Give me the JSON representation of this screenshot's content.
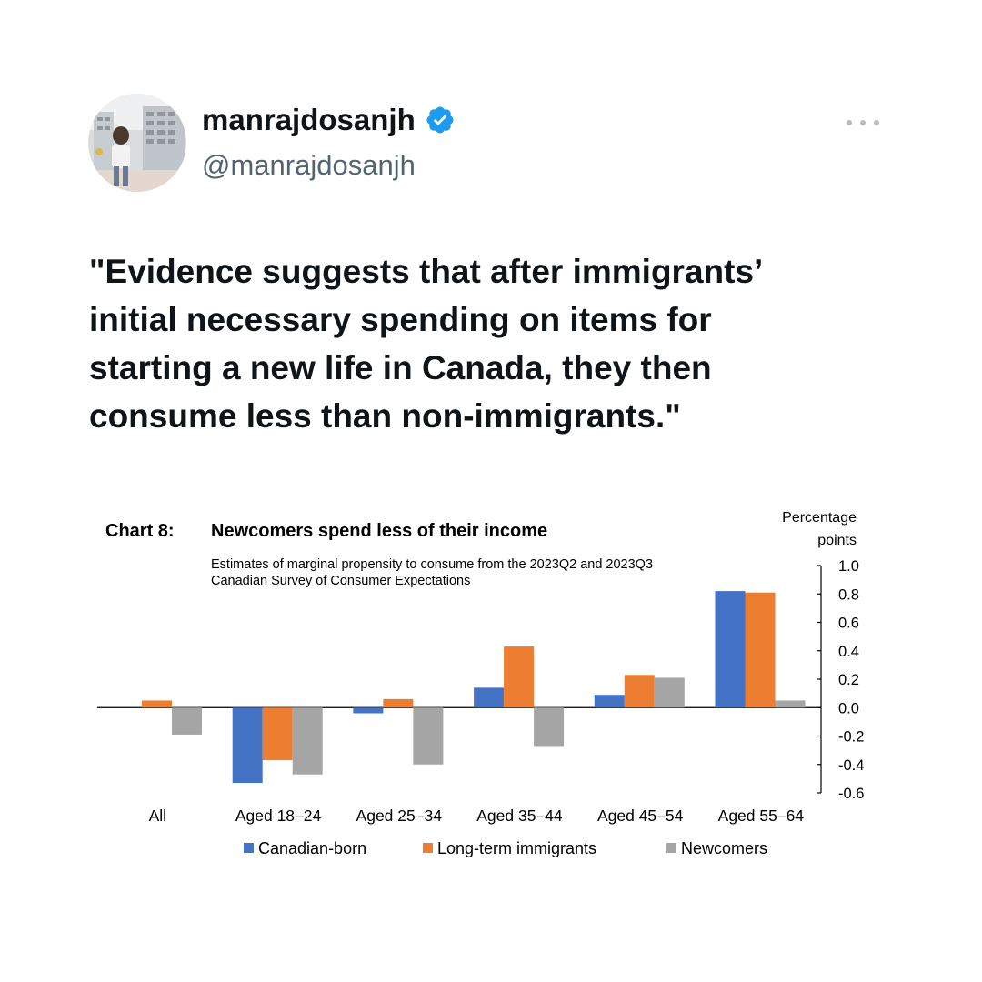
{
  "user": {
    "display_name": "manrajdosanjh",
    "handle": "@manrajdosanjh",
    "verified": true,
    "verified_color": "#1d9bf0"
  },
  "tweet": {
    "lines": [
      "\"Evidence suggests that after immigrants’",
      "initial necessary spending on items for",
      "starting a new life in Canada, they then",
      "consume less than non-immigrants.\""
    ]
  },
  "icons": {
    "more": "more-options-icon",
    "verified": "verified-badge-icon"
  },
  "chart_data": {
    "type": "bar",
    "chart_label": "Chart 8:",
    "title": "Newcomers spend less of their income",
    "subtitle_lines": [
      "Estimates of marginal propensity to consume from the 2023Q2 and 2023Q3",
      "Canadian Survey of Consumer Expectations"
    ],
    "ylabel_lines": [
      "Percentage",
      "points"
    ],
    "ylim": [
      -0.6,
      1.0
    ],
    "yticks": [
      "1.0",
      "0.8",
      "0.6",
      "0.4",
      "0.2",
      "0.0",
      "-0.2",
      "-0.4",
      "-0.6"
    ],
    "categories": [
      "All",
      "Aged 18–24",
      "Aged 25–34",
      "Aged 35–44",
      "Aged 45–54",
      "Aged 55–64"
    ],
    "series": [
      {
        "name": "Canadian-born",
        "color": "#4472c4",
        "values": [
          0.0,
          -0.53,
          -0.04,
          0.14,
          0.09,
          0.82
        ]
      },
      {
        "name": "Long-term immigrants",
        "color": "#ed7d31",
        "values": [
          0.05,
          -0.37,
          0.06,
          0.43,
          0.23,
          0.81
        ]
      },
      {
        "name": "Newcomers",
        "color": "#a5a5a5",
        "values": [
          -0.19,
          -0.47,
          -0.4,
          -0.27,
          0.21,
          0.05
        ]
      }
    ],
    "legend_position": "bottom"
  }
}
